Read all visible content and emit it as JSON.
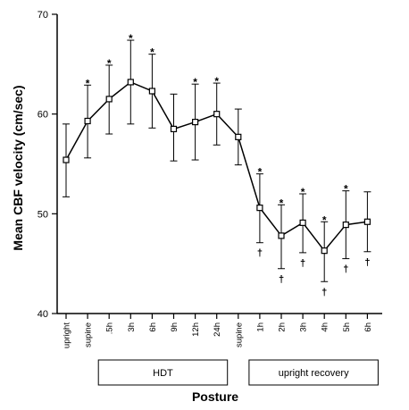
{
  "chart_data": {
    "type": "line",
    "title": "",
    "xlabel": "Posture",
    "ylabel": "Mean CBF velocity (cm/sec)",
    "ylim": [
      40,
      70
    ],
    "yticks": [
      40,
      50,
      60,
      70
    ],
    "grid": false,
    "categories": [
      "upright",
      "supine",
      ".5h",
      "3h",
      "6h",
      "9h",
      "12h",
      "24h",
      "supine",
      "1h",
      "2h",
      "3h",
      "4h",
      "5h",
      "6h"
    ],
    "series": [
      {
        "values": [
          55.4,
          59.3,
          61.5,
          63.2,
          62.3,
          58.5,
          59.2,
          60.0,
          57.7,
          50.6,
          47.8,
          49.1,
          46.3,
          48.9,
          49.2
        ],
        "error_upper": [
          59.0,
          62.9,
          64.9,
          67.4,
          66.0,
          62.0,
          63.0,
          63.1,
          60.5,
          54.0,
          50.9,
          52.0,
          49.2,
          52.3,
          52.2
        ],
        "error_lower": [
          51.7,
          55.6,
          58.0,
          59.0,
          58.6,
          55.3,
          55.4,
          56.9,
          54.9,
          47.1,
          44.5,
          46.1,
          43.2,
          45.5,
          46.2
        ]
      }
    ],
    "significance_markers": [
      {
        "index": 1,
        "text": "*"
      },
      {
        "index": 2,
        "text": "*"
      },
      {
        "index": 3,
        "text": "*"
      },
      {
        "index": 4,
        "text": "*"
      },
      {
        "index": 6,
        "text": "*"
      },
      {
        "index": 7,
        "text": "*"
      },
      {
        "index": 9,
        "text": "*"
      },
      {
        "index": 10,
        "text": "*"
      },
      {
        "index": 11,
        "text": "*"
      },
      {
        "index": 12,
        "text": "*"
      },
      {
        "index": 13,
        "text": "*"
      }
    ],
    "dagger_markers": [
      {
        "index": 9,
        "text": "†"
      },
      {
        "index": 10,
        "text": "†"
      },
      {
        "index": 11,
        "text": "†"
      },
      {
        "index": 12,
        "text": "†"
      },
      {
        "index": 13,
        "text": "†"
      },
      {
        "index": 14,
        "text": "†"
      }
    ],
    "groups": [
      {
        "label": "HDT",
        "start_index": 2,
        "end_index": 7
      },
      {
        "label": "upright recovery",
        "start_index": 9,
        "end_index": 14
      }
    ]
  }
}
